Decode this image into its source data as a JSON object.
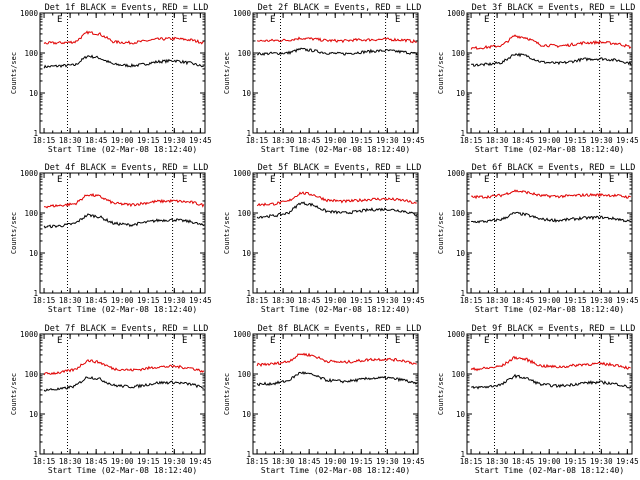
{
  "chart_data": [
    {
      "type": "line",
      "title": "Det 1f BLACK = Events, RED = LLD",
      "ylabel": "Counts/sec",
      "xlabel": "Start Time (02-Mar-08 18:12:40)",
      "yscale": "log",
      "ylim": [
        1,
        1000
      ],
      "y_ticks": [
        "1",
        "10",
        "100",
        "1000"
      ],
      "x_ticks": [
        "18:15",
        "18:30",
        "18:45",
        "19:00",
        "19:15",
        "19:30",
        "19:45"
      ],
      "marks": [
        "E",
        "E"
      ],
      "series": [
        {
          "color": "#000000",
          "x": [
            "18:15",
            "18:25",
            "18:33",
            "18:40",
            "18:47",
            "18:55",
            "19:05",
            "19:10",
            "19:20",
            "19:30",
            "19:40",
            "19:47"
          ],
          "values": [
            45,
            48,
            50,
            85,
            75,
            52,
            48,
            50,
            60,
            65,
            55,
            45
          ]
        },
        {
          "color": "#e00000",
          "x": [
            "18:15",
            "18:25",
            "18:33",
            "18:40",
            "18:47",
            "18:55",
            "19:05",
            "19:10",
            "19:20",
            "19:30",
            "19:40",
            "19:47"
          ],
          "values": [
            175,
            180,
            190,
            330,
            300,
            190,
            180,
            190,
            220,
            230,
            210,
            180
          ]
        }
      ]
    },
    {
      "type": "line",
      "title": "Det 2f BLACK = Events, RED = LLD",
      "ylabel": "Counts/sec",
      "xlabel": "Start Time (02-Mar-08 18:12:40)",
      "yscale": "log",
      "ylim": [
        1,
        1000
      ],
      "y_ticks": [
        "1",
        "10",
        "100",
        "1000"
      ],
      "x_ticks": [
        "18:15",
        "18:30",
        "18:45",
        "19:00",
        "19:15",
        "19:30",
        "19:45"
      ],
      "marks": [
        "E",
        "E"
      ],
      "series": [
        {
          "color": "#000000",
          "x": [
            "18:15",
            "18:25",
            "18:33",
            "18:40",
            "18:47",
            "18:55",
            "19:05",
            "19:10",
            "19:20",
            "19:30",
            "19:40",
            "19:47"
          ],
          "values": [
            95,
            98,
            100,
            125,
            115,
            100,
            95,
            100,
            110,
            115,
            105,
            95
          ]
        },
        {
          "color": "#e00000",
          "x": [
            "18:15",
            "18:25",
            "18:33",
            "18:40",
            "18:47",
            "18:55",
            "19:05",
            "19:10",
            "19:20",
            "19:30",
            "19:40",
            "19:47"
          ],
          "values": [
            200,
            205,
            210,
            235,
            225,
            205,
            200,
            210,
            215,
            220,
            210,
            190
          ]
        }
      ]
    },
    {
      "type": "line",
      "title": "Det 3f BLACK = Events, RED = LLD",
      "ylabel": "Counts/sec",
      "xlabel": "Start Time (02-Mar-08 18:12:40)",
      "yscale": "log",
      "ylim": [
        1,
        1000
      ],
      "y_ticks": [
        "1",
        "10",
        "100",
        "1000"
      ],
      "x_ticks": [
        "18:15",
        "18:30",
        "18:45",
        "19:00",
        "19:15",
        "19:30",
        "19:45"
      ],
      "marks": [
        "E",
        "E"
      ],
      "series": [
        {
          "color": "#000000",
          "x": [
            "18:15",
            "18:25",
            "18:33",
            "18:40",
            "18:47",
            "18:55",
            "19:05",
            "19:10",
            "19:20",
            "19:30",
            "19:40",
            "19:47"
          ],
          "values": [
            50,
            52,
            58,
            95,
            85,
            60,
            55,
            58,
            70,
            72,
            65,
            55
          ]
        },
        {
          "color": "#e00000",
          "x": [
            "18:15",
            "18:25",
            "18:33",
            "18:40",
            "18:47",
            "18:55",
            "19:05",
            "19:10",
            "19:20",
            "19:30",
            "19:40",
            "19:47"
          ],
          "values": [
            130,
            140,
            155,
            270,
            240,
            160,
            150,
            155,
            180,
            185,
            170,
            140
          ]
        }
      ]
    },
    {
      "type": "line",
      "title": "Det 4f BLACK = Events, RED = LLD",
      "ylabel": "Counts/sec",
      "xlabel": "Start Time (02-Mar-08 18:12:40)",
      "yscale": "log",
      "ylim": [
        1,
        1000
      ],
      "y_ticks": [
        "1",
        "10",
        "100",
        "1000"
      ],
      "x_ticks": [
        "18:15",
        "18:30",
        "18:45",
        "19:00",
        "19:15",
        "19:30",
        "19:45"
      ],
      "marks": [
        "E",
        "E"
      ],
      "series": [
        {
          "color": "#000000",
          "x": [
            "18:15",
            "18:25",
            "18:33",
            "18:40",
            "18:47",
            "18:55",
            "19:05",
            "19:10",
            "19:20",
            "19:30",
            "19:40",
            "19:47"
          ],
          "values": [
            45,
            48,
            55,
            90,
            80,
            55,
            50,
            55,
            65,
            68,
            60,
            48
          ]
        },
        {
          "color": "#e00000",
          "x": [
            "18:15",
            "18:25",
            "18:33",
            "18:40",
            "18:47",
            "18:55",
            "19:05",
            "19:10",
            "19:20",
            "19:30",
            "19:40",
            "19:47"
          ],
          "values": [
            145,
            155,
            170,
            290,
            260,
            175,
            160,
            170,
            195,
            200,
            185,
            155
          ]
        }
      ]
    },
    {
      "type": "line",
      "title": "Det 5f BLACK = Events, RED = LLD",
      "ylabel": "Counts/sec",
      "xlabel": "Start Time (02-Mar-08 18:12:40)",
      "yscale": "log",
      "ylim": [
        1,
        1000
      ],
      "y_ticks": [
        "1",
        "10",
        "100",
        "1000"
      ],
      "x_ticks": [
        "18:15",
        "18:30",
        "18:45",
        "19:00",
        "19:15",
        "19:30",
        "19:45"
      ],
      "marks": [
        "E",
        "E"
      ],
      "series": [
        {
          "color": "#000000",
          "x": [
            "18:15",
            "18:25",
            "18:33",
            "18:40",
            "18:47",
            "18:55",
            "19:05",
            "19:10",
            "19:20",
            "19:30",
            "19:40",
            "19:47"
          ],
          "values": [
            80,
            85,
            100,
            180,
            160,
            110,
            100,
            105,
            120,
            125,
            110,
            90
          ]
        },
        {
          "color": "#e00000",
          "x": [
            "18:15",
            "18:25",
            "18:33",
            "18:40",
            "18:47",
            "18:55",
            "19:05",
            "19:10",
            "19:20",
            "19:30",
            "19:40",
            "19:47"
          ],
          "values": [
            160,
            170,
            195,
            320,
            290,
            210,
            195,
            200,
            220,
            225,
            205,
            170
          ]
        }
      ]
    },
    {
      "type": "line",
      "title": "Det 6f BLACK = Events, RED = LLD",
      "ylabel": "Counts/sec",
      "xlabel": "Start Time (02-Mar-08 18:12:40)",
      "yscale": "log",
      "ylim": [
        1,
        1000
      ],
      "y_ticks": [
        "1",
        "10",
        "100",
        "1000"
      ],
      "x_ticks": [
        "18:15",
        "18:30",
        "18:45",
        "19:00",
        "19:15",
        "19:30",
        "19:45"
      ],
      "marks": [
        "E",
        "E"
      ],
      "series": [
        {
          "color": "#000000",
          "x": [
            "18:15",
            "18:25",
            "18:33",
            "18:40",
            "18:47",
            "18:55",
            "19:05",
            "19:10",
            "19:20",
            "19:30",
            "19:40",
            "19:47"
          ],
          "values": [
            60,
            62,
            70,
            100,
            90,
            70,
            65,
            68,
            75,
            78,
            70,
            60
          ]
        },
        {
          "color": "#e00000",
          "x": [
            "18:15",
            "18:25",
            "18:33",
            "18:40",
            "18:47",
            "18:55",
            "19:05",
            "19:10",
            "19:20",
            "19:30",
            "19:40",
            "19:47"
          ],
          "values": [
            250,
            255,
            280,
            360,
            330,
            270,
            260,
            265,
            280,
            285,
            270,
            245
          ]
        }
      ]
    },
    {
      "type": "line",
      "title": "Det 7f BLACK = Events, RED = LLD",
      "ylabel": "Counts/sec",
      "xlabel": "Start Time (02-Mar-08 18:12:40)",
      "yscale": "log",
      "ylim": [
        1,
        1000
      ],
      "y_ticks": [
        "1",
        "10",
        "100",
        "1000"
      ],
      "x_ticks": [
        "18:15",
        "18:30",
        "18:45",
        "19:00",
        "19:15",
        "19:30",
        "19:45"
      ],
      "marks": [
        "E",
        "E"
      ],
      "series": [
        {
          "color": "#000000",
          "x": [
            "18:15",
            "18:25",
            "18:33",
            "18:40",
            "18:47",
            "18:55",
            "19:05",
            "19:10",
            "19:20",
            "19:30",
            "19:40",
            "19:47"
          ],
          "values": [
            40,
            42,
            50,
            85,
            75,
            52,
            48,
            50,
            60,
            62,
            55,
            45
          ]
        },
        {
          "color": "#e00000",
          "x": [
            "18:15",
            "18:25",
            "18:33",
            "18:40",
            "18:47",
            "18:55",
            "19:05",
            "19:10",
            "19:20",
            "19:30",
            "19:40",
            "19:47"
          ],
          "values": [
            100,
            110,
            130,
            220,
            195,
            135,
            125,
            130,
            150,
            155,
            140,
            115
          ]
        }
      ]
    },
    {
      "type": "line",
      "title": "Det 8f BLACK = Events, RED = LLD",
      "ylabel": "Counts/sec",
      "xlabel": "Start Time (02-Mar-08 18:12:40)",
      "yscale": "log",
      "ylim": [
        1,
        1000
      ],
      "y_ticks": [
        "1",
        "10",
        "100",
        "1000"
      ],
      "x_ticks": [
        "18:15",
        "18:30",
        "18:45",
        "19:00",
        "19:15",
        "19:30",
        "19:45"
      ],
      "marks": [
        "E",
        "E"
      ],
      "series": [
        {
          "color": "#000000",
          "x": [
            "18:15",
            "18:25",
            "18:33",
            "18:40",
            "18:47",
            "18:55",
            "19:05",
            "19:10",
            "19:20",
            "19:30",
            "19:40",
            "19:47"
          ],
          "values": [
            55,
            58,
            68,
            110,
            95,
            70,
            65,
            68,
            78,
            80,
            70,
            55
          ]
        },
        {
          "color": "#e00000",
          "x": [
            "18:15",
            "18:25",
            "18:33",
            "18:40",
            "18:47",
            "18:55",
            "19:05",
            "19:10",
            "19:20",
            "19:30",
            "19:40",
            "19:47"
          ],
          "values": [
            170,
            180,
            205,
            320,
            290,
            210,
            195,
            205,
            230,
            235,
            215,
            175
          ]
        }
      ]
    },
    {
      "type": "line",
      "title": "Det 9f BLACK = Events, RED = LLD",
      "ylabel": "Counts/sec",
      "xlabel": "Start Time (02-Mar-08 18:12:40)",
      "yscale": "log",
      "ylim": [
        1,
        1000
      ],
      "y_ticks": [
        "1",
        "10",
        "100",
        "1000"
      ],
      "x_ticks": [
        "18:15",
        "18:30",
        "18:45",
        "19:00",
        "19:15",
        "19:30",
        "19:45"
      ],
      "marks": [
        "E",
        "E"
      ],
      "series": [
        {
          "color": "#000000",
          "x": [
            "18:15",
            "18:25",
            "18:33",
            "18:40",
            "18:47",
            "18:55",
            "19:05",
            "19:10",
            "19:20",
            "19:30",
            "19:40",
            "19:47"
          ],
          "values": [
            45,
            48,
            55,
            90,
            78,
            55,
            50,
            52,
            60,
            62,
            55,
            45
          ]
        },
        {
          "color": "#e00000",
          "x": [
            "18:15",
            "18:25",
            "18:33",
            "18:40",
            "18:47",
            "18:55",
            "19:05",
            "19:10",
            "19:20",
            "19:30",
            "19:40",
            "19:47"
          ],
          "values": [
            130,
            140,
            160,
            260,
            230,
            160,
            150,
            155,
            175,
            180,
            165,
            135
          ]
        }
      ]
    }
  ]
}
